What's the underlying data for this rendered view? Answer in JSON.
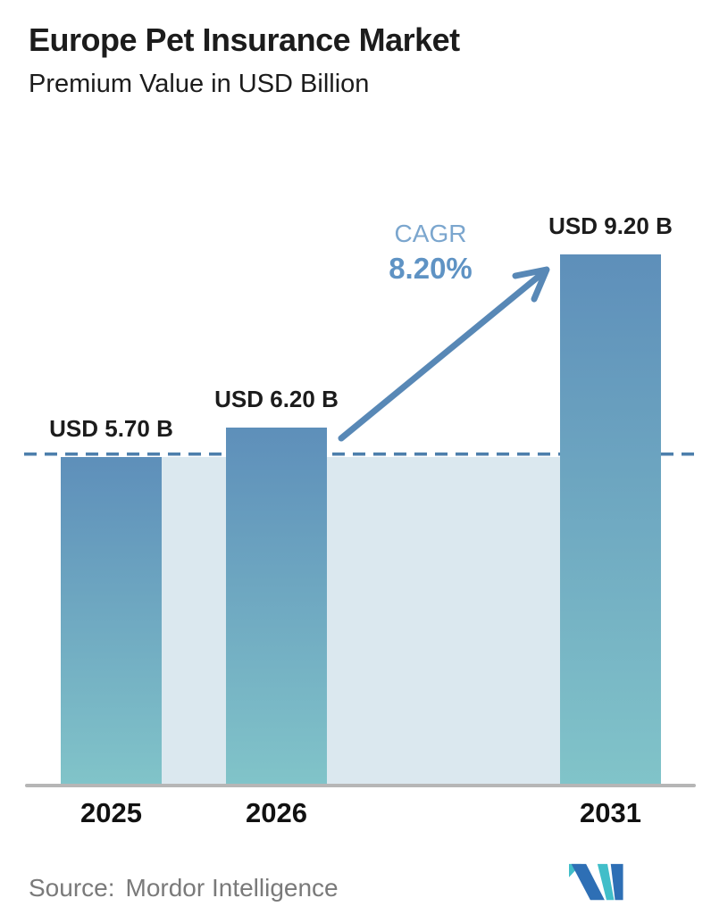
{
  "chart_data": {
    "type": "bar",
    "title": "Europe Pet Insurance Market",
    "subtitle": "Premium Value in USD Billion",
    "unit": "USD Billion",
    "categories": [
      "2025",
      "2026",
      "2031"
    ],
    "values": [
      5.7,
      6.2,
      9.2
    ],
    "value_labels": [
      "USD 5.70 B",
      "USD 6.20 B",
      "USD 9.20 B"
    ],
    "ylim": [
      0,
      10
    ],
    "grid": false,
    "legend": "none",
    "reference_line": {
      "value": 5.7,
      "style": "dashed"
    },
    "annotation": {
      "label": "CAGR",
      "value": "8.20%",
      "arrow_from": "2026",
      "arrow_to": "2031"
    }
  },
  "footer": {
    "source_label": "Source:",
    "source_value": "Mordor Intelligence",
    "logo_name": "mordor-intelligence-logo"
  },
  "colors": {
    "ink": "#1c1c1c",
    "muted": "#7a7a7a",
    "axis": "#b6b6b6",
    "band": "#dbe8ef",
    "dash": "#4d7fac",
    "arrow": "#5888b6",
    "cagrLabel": "#7ba6ce",
    "cagrValue": "#5f93c4",
    "barTop": "#5e8fba",
    "barBottom": "#81c4c9",
    "logoBlue": "#2e6fb5",
    "logoTeal": "#41bec9"
  }
}
